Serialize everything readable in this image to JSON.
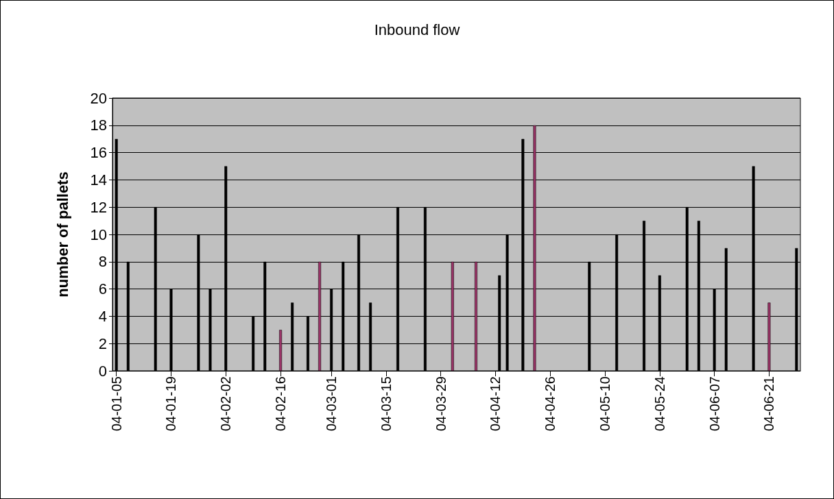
{
  "chart_data": {
    "type": "bar",
    "title": "Inbound flow",
    "ylabel": "number of pallets",
    "series": [
      {
        "color": "#000000",
        "x": [
          "--01-05",
          "--01-08",
          "--01-15",
          "--01-19",
          "--01-26",
          "--01-29",
          "--02-02",
          "--02-09",
          "--02-12",
          "--02-19",
          "--02-23",
          "--03-01",
          "--03-04",
          "--03-08",
          "--03-11",
          "--03-18",
          "--03-25",
          "--04-13",
          "--04-15",
          "--04-19",
          "--05-06",
          "--05-13",
          "--05-20",
          "--05-24",
          "--05-31",
          "--06-03",
          "--06-07",
          "--06-10",
          "--06-17",
          "--06-28"
        ],
        "values": [
          17,
          8,
          12,
          6,
          10,
          6,
          15,
          4,
          8,
          5,
          4,
          6,
          8,
          10,
          5,
          12,
          12,
          7,
          10,
          17,
          8,
          10,
          11,
          7,
          12,
          11,
          6,
          9,
          15,
          9
        ]
      },
      {
        "color": "#993366",
        "x": [
          "--02-16",
          "--02-26",
          "--04-01",
          "--04-07",
          "--04-22",
          "--06-21"
        ],
        "values": [
          3,
          8,
          8,
          8,
          18,
          5
        ]
      }
    ],
    "xlim": [
      "--01-04",
      "--06-29"
    ],
    "xticks": [
      {
        "value": "--01-05",
        "label": "04-01-05"
      },
      {
        "value": "--01-19",
        "label": "04-01-19"
      },
      {
        "value": "--02-02",
        "label": "04-02-02"
      },
      {
        "value": "--02-16",
        "label": "04-02-16"
      },
      {
        "value": "--03-01",
        "label": "04-03-01"
      },
      {
        "value": "--03-15",
        "label": "04-03-15"
      },
      {
        "value": "--03-29",
        "label": "04-03-29"
      },
      {
        "value": "--04-12",
        "label": "04-04-12"
      },
      {
        "value": "--04-26",
        "label": "04-04-26"
      },
      {
        "value": "--05-10",
        "label": "04-05-10"
      },
      {
        "value": "--05-24",
        "label": "04-05-24"
      },
      {
        "value": "--06-07",
        "label": "04-06-07"
      },
      {
        "value": "--06-21",
        "label": "04-06-21"
      }
    ],
    "ylim": [
      0,
      20
    ],
    "yticks": [
      0,
      2,
      4,
      6,
      8,
      10,
      12,
      14,
      16,
      18,
      20
    ],
    "grid": "y"
  }
}
